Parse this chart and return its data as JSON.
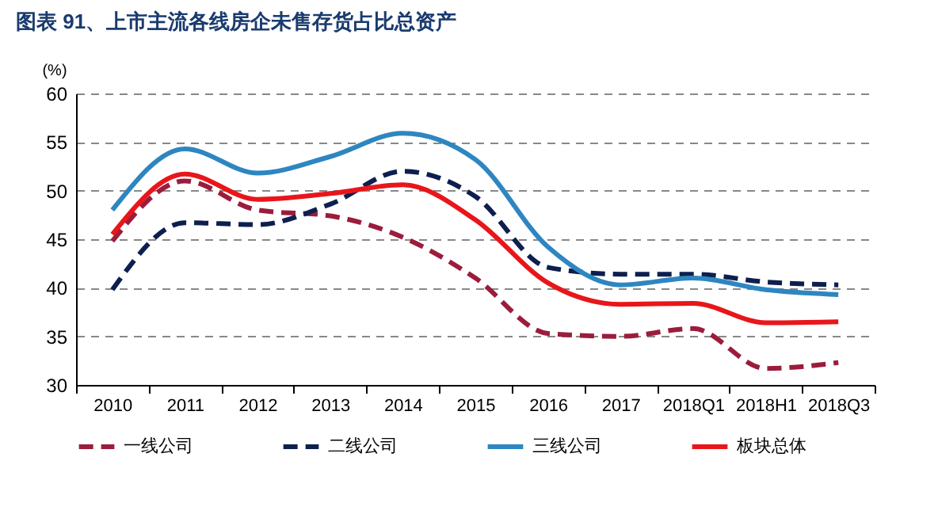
{
  "chart_data": {
    "type": "line",
    "title": "图表 91、上市主流各线房企未售存货占比总资产",
    "ylabel": "(%)",
    "categories": [
      "2010",
      "2011",
      "2012",
      "2013",
      "2014",
      "2015",
      "2016",
      "2017",
      "2018Q1",
      "2018H1",
      "2018Q3"
    ],
    "series": [
      {
        "name": "一线公司",
        "color": "#9b1c3c",
        "line_style": "dashed",
        "values": [
          44.8,
          51.0,
          48.0,
          47.4,
          45.2,
          41.0,
          35.3,
          35.0,
          35.8,
          31.7,
          32.3
        ]
      },
      {
        "name": "二线公司",
        "color": "#0d1f4f",
        "line_style": "dashed",
        "values": [
          39.8,
          46.7,
          46.5,
          48.6,
          52.0,
          49.4,
          42.1,
          41.4,
          41.4,
          40.6,
          40.3
        ]
      },
      {
        "name": "三线公司",
        "color": "#2e86c1",
        "line_style": "solid",
        "values": [
          48.0,
          54.3,
          51.8,
          53.5,
          55.9,
          53.2,
          44.2,
          40.3,
          41.0,
          39.8,
          39.3
        ]
      },
      {
        "name": "板块总体",
        "color": "#e8161b",
        "line_style": "solid",
        "values": [
          45.5,
          51.7,
          49.1,
          49.7,
          50.6,
          47.0,
          40.5,
          38.3,
          38.4,
          36.4,
          36.5
        ]
      }
    ],
    "ylim": [
      30,
      60
    ],
    "yticks": [
      30,
      35,
      40,
      45,
      50,
      55,
      60
    ],
    "grid": "y",
    "legend": "bottom"
  }
}
